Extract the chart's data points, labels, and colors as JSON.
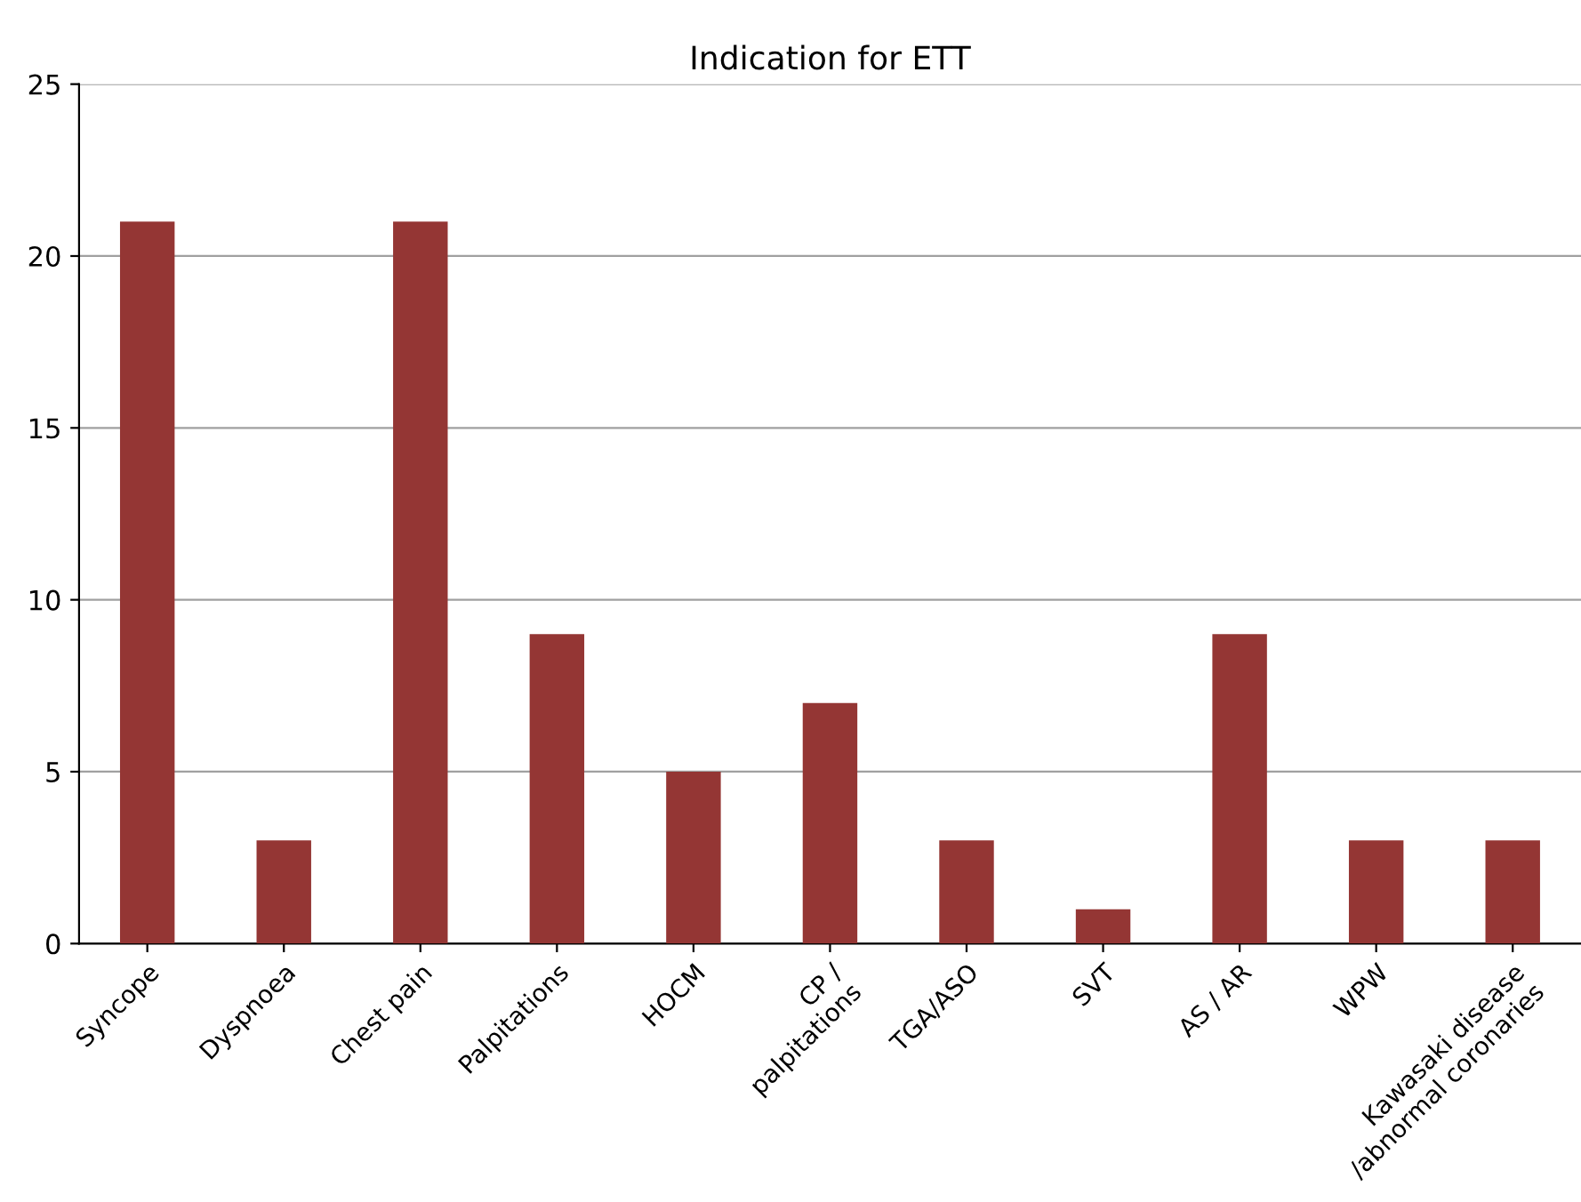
{
  "chart_data": {
    "type": "bar",
    "title": "Indication for ETT",
    "categories": [
      "Syncope",
      "Dyspnoea",
      "Chest pain",
      "Palpitations",
      "HOCM",
      "CP /\npalpitations",
      "TGA/ASO",
      "SVT",
      "AS / AR",
      "WPW",
      "Kawasaki disease\n/abnormal coronaries"
    ],
    "values": [
      21,
      3,
      21,
      9,
      5,
      7,
      3,
      1,
      9,
      3,
      3
    ],
    "color": "#943634",
    "ylim": [
      0,
      25
    ],
    "yticks": [
      0,
      5,
      10,
      15,
      20,
      25
    ],
    "grid": "y",
    "legend": false
  }
}
